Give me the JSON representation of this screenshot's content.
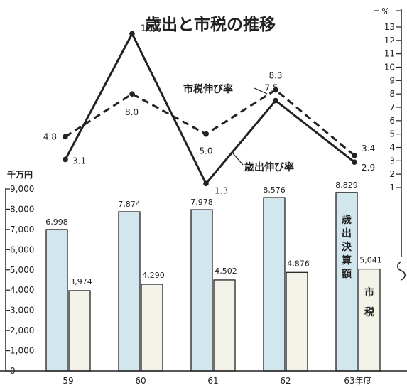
{
  "chart_data": {
    "type": "bar+line",
    "title": "歳出と市税の推移",
    "categories": [
      "59",
      "60",
      "61",
      "62",
      "63"
    ],
    "x_last_suffix": "年度",
    "left_axis_unit": "千万円",
    "left_ticks": [
      "0",
      "1,000",
      "2,000",
      "3,000",
      "4,000",
      "5,000",
      "6,000",
      "7,000",
      "8,000",
      "9,000"
    ],
    "left_ylim": [
      0,
      9000
    ],
    "right_axis_unit": "%",
    "right_ticks": [
      "1",
      "2",
      "3",
      "4",
      "5",
      "6",
      "7",
      "8",
      "9",
      "10",
      "11",
      "12",
      "13"
    ],
    "right_ylim": [
      1,
      13
    ],
    "bar_series": [
      {
        "name": "歳出決算額",
        "values": [
          6998,
          7874,
          7978,
          8576,
          8829
        ],
        "labels": [
          "6,998",
          "7,874",
          "7,978",
          "8,576",
          "8,829"
        ],
        "color": "#d2e6ee"
      },
      {
        "name": "市税",
        "values": [
          3974,
          4290,
          4502,
          4876,
          5041
        ],
        "labels": [
          "3,974",
          "4,290",
          "4,502",
          "4,876",
          "5,041"
        ],
        "color": "#f3f3ea"
      }
    ],
    "line_series": [
      {
        "name": "歳出伸び率",
        "values": [
          3.1,
          12.5,
          1.3,
          7.5,
          2.9
        ],
        "labels": [
          "3.1",
          "12.5",
          "1.3",
          "7.5",
          "2.9"
        ],
        "style": "solid"
      },
      {
        "name": "市税伸び率",
        "values": [
          4.8,
          8.0,
          5.0,
          8.3,
          3.4
        ],
        "labels": [
          "4.8",
          "8.0",
          "5.0",
          "8.3",
          "3.4"
        ],
        "style": "dashed"
      }
    ]
  }
}
